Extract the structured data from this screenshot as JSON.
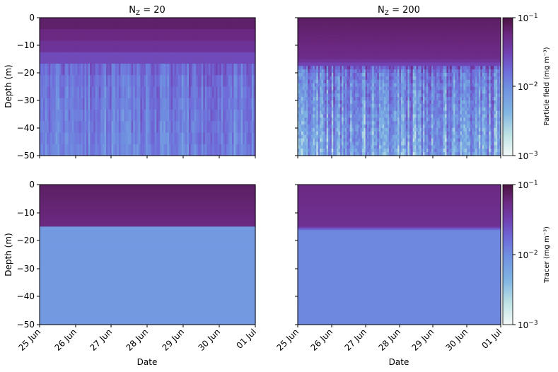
{
  "chart_data": [
    {
      "type": "heatmap",
      "panel": "top-left",
      "title_main": "N",
      "title_sub": "Z",
      "title_rest": " = 20",
      "ylabel": "Depth (m)",
      "xlabel": "",
      "x_ticks": [
        "25 Jun",
        "26 Jun",
        "27 Jun",
        "28 Jun",
        "29 Jun",
        "30 Jun",
        "01 Jul"
      ],
      "y_ticks": [
        0,
        -10,
        -20,
        -30,
        -40,
        -50
      ],
      "ylim": [
        -50,
        0
      ],
      "field": "Particle field (mg m⁻³)",
      "profile": [
        {
          "depth": 0,
          "value": 0.075
        },
        {
          "depth": -10,
          "value": 0.04
        },
        {
          "depth": -20,
          "value": 0.012
        },
        {
          "depth": -50,
          "value": 0.009
        }
      ]
    },
    {
      "type": "heatmap",
      "panel": "top-right",
      "title_main": "N",
      "title_sub": "Z",
      "title_rest": " = 200",
      "ylabel": "",
      "xlabel": "",
      "x_ticks": [
        "25 Jun",
        "26 Jun",
        "27 Jun",
        "28 Jun",
        "29 Jun",
        "30 Jun",
        "01 Jul"
      ],
      "ylim": [
        -50,
        0
      ],
      "field": "Particle field (mg m⁻³)",
      "profile": [
        {
          "depth": 0,
          "value": 0.07
        },
        {
          "depth": -15,
          "value": 0.045
        },
        {
          "depth": -20,
          "value": 0.01
        },
        {
          "depth": -50,
          "value": 0.005
        }
      ]
    },
    {
      "type": "heatmap",
      "panel": "bottom-left",
      "ylabel": "Depth (m)",
      "xlabel": "Date",
      "x_ticks": [
        "25 Jun",
        "26 Jun",
        "27 Jun",
        "28 Jun",
        "29 Jun",
        "30 Jun",
        "01 Jul"
      ],
      "y_ticks": [
        0,
        -10,
        -20,
        -30,
        -40,
        -50
      ],
      "ylim": [
        -50,
        0
      ],
      "field": "Tracer (mg m⁻³)",
      "profile": [
        {
          "depth": 0,
          "value": 0.07
        },
        {
          "depth": -15,
          "value": 0.05
        },
        {
          "depth": -15.5,
          "value": 0.006
        },
        {
          "depth": -50,
          "value": 0.006
        }
      ]
    },
    {
      "type": "heatmap",
      "panel": "bottom-right",
      "ylabel": "",
      "xlabel": "Date",
      "x_ticks": [
        "25 Jun",
        "26 Jun",
        "27 Jun",
        "28 Jun",
        "29 Jun",
        "30 Jun",
        "01 Jul"
      ],
      "ylim": [
        -50,
        0
      ],
      "field": "Tracer (mg m⁻³)",
      "profile": [
        {
          "depth": 0,
          "value": 0.05
        },
        {
          "depth": -15,
          "value": 0.04
        },
        {
          "depth": -16.5,
          "value": 0.008
        },
        {
          "depth": -50,
          "value": 0.008
        }
      ]
    }
  ],
  "colorbars": [
    {
      "label": "Particle field (mg m⁻³)",
      "scale": "log",
      "range": [
        0.001,
        0.1
      ],
      "tick_base": "10",
      "tick_exponents": [
        "−1",
        "−2",
        "−3"
      ]
    },
    {
      "label": "Tracer (mg m⁻³)",
      "scale": "log",
      "range": [
        0.001,
        0.1
      ],
      "tick_base": "10",
      "tick_exponents": [
        "−1",
        "−2",
        "−3"
      ]
    }
  ],
  "colormap": [
    "#f3f8f8",
    "#bfe3e4",
    "#7fb4e3",
    "#6f8ee0",
    "#6f6ad8",
    "#7140b0",
    "#6b2880",
    "#4a1440"
  ]
}
